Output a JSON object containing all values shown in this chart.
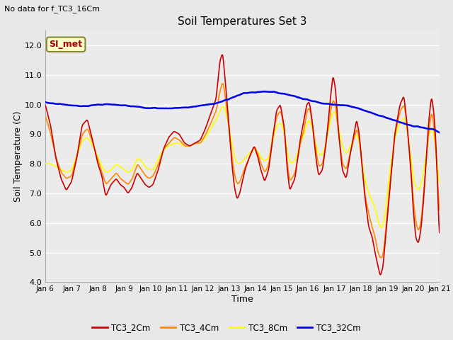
{
  "title": "Soil Temperatures Set 3",
  "subtitle": "No data for f_TC3_16Cm",
  "xlabel": "Time",
  "ylabel": "Soil Temperature (C)",
  "ylim": [
    4.0,
    12.5
  ],
  "yticks": [
    4.0,
    5.0,
    6.0,
    7.0,
    8.0,
    9.0,
    10.0,
    11.0,
    12.0
  ],
  "bg_color": "#e8e8e8",
  "plot_bg_color": "#ebebeb",
  "annotation_box": "SI_met",
  "annotation_color": "#aa0000",
  "annotation_bg": "#ffffcc",
  "annotation_edge": "#888833",
  "line_colors": {
    "TC3_2Cm": "#cc0000",
    "TC3_4Cm": "#ff8800",
    "TC3_8Cm": "#ffff00",
    "TC3_32Cm": "#0000ee"
  },
  "line_widths": {
    "TC3_2Cm": 1.2,
    "TC3_4Cm": 1.2,
    "TC3_8Cm": 1.2,
    "TC3_32Cm": 1.8
  },
  "x_labels": [
    "Jan 6",
    "Jan 7",
    "Jan 8",
    "Jan 9",
    "Jan 10",
    "Jan 11",
    "Jan 12",
    "Jan 13",
    "Jan 14",
    "Jan 15",
    "Jan 16",
    "Jan 17",
    "Jan 18",
    "Jan 19",
    "Jan 20",
    "Jan 21"
  ],
  "num_points": 720
}
